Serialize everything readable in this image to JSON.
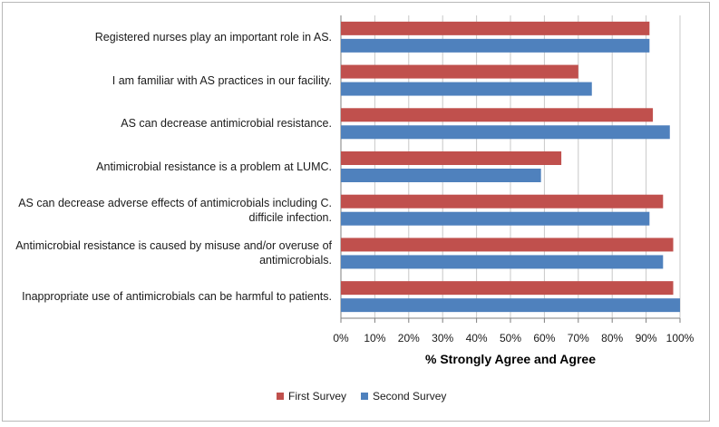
{
  "chart_data": {
    "type": "bar",
    "orientation": "horizontal",
    "categories": [
      "Registered nurses play an important role in AS.",
      "I am familiar with AS practices in our facility.",
      "AS can decrease antimicrobial resistance.",
      "Antimicrobial resistance is a problem at LUMC.",
      "AS can decrease adverse effects of antimicrobials including C. difficile infection.",
      "Antimicrobial resistance is caused by misuse and/or overuse of antimicrobials.",
      "Inappropriate use of antimicrobials can be harmful to patients."
    ],
    "category_lines": [
      [
        "Registered nurses play an important role in AS."
      ],
      [
        "I am familiar with AS practices in our facility."
      ],
      [
        "AS can decrease antimicrobial resistance."
      ],
      [
        "Antimicrobial resistance is a problem at LUMC."
      ],
      [
        "AS can decrease adverse effects of antimicrobials including C.",
        "difficile infection."
      ],
      [
        "Antimicrobial resistance is caused by misuse and/or overuse of",
        "antimicrobials."
      ],
      [
        "Inappropriate use of antimicrobials can be harmful to patients."
      ]
    ],
    "series": [
      {
        "name": "First Survey",
        "color": "#c0504d",
        "values": [
          91,
          70,
          92,
          65,
          95,
          98,
          98
        ]
      },
      {
        "name": "Second Survey",
        "color": "#4f81bd",
        "values": [
          91,
          74,
          97,
          59,
          91,
          95,
          100
        ]
      }
    ],
    "xlim": [
      0,
      100
    ],
    "xticks": [
      "0%",
      "10%",
      "20%",
      "30%",
      "40%",
      "50%",
      "60%",
      "70%",
      "80%",
      "90%",
      "100%"
    ],
    "xlabel": "% Strongly Agree and Agree",
    "grid": true,
    "legend_position": "bottom"
  }
}
